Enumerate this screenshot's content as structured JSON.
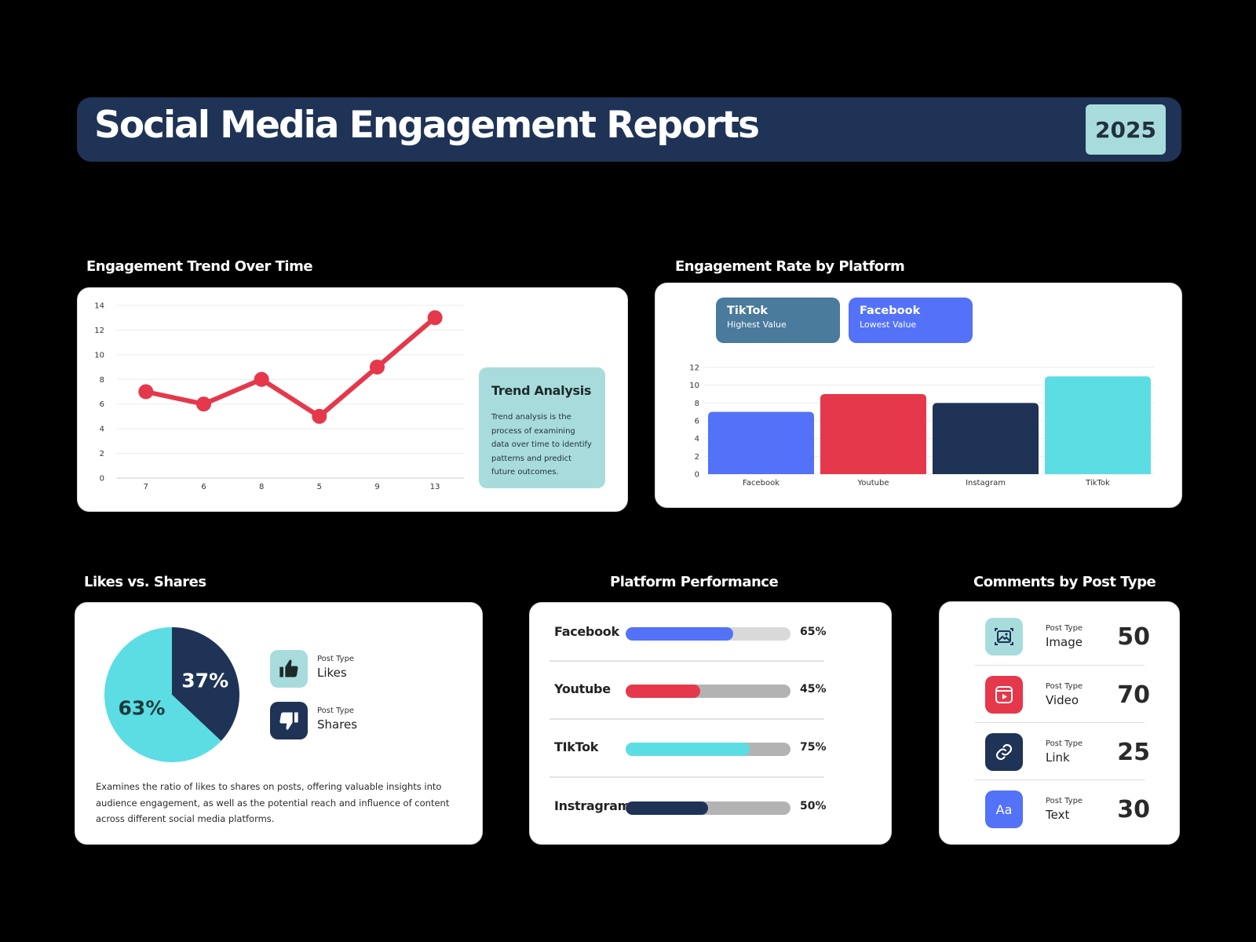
{
  "header": {
    "title": "Social Media Engagement Reports",
    "year": "2025"
  },
  "sections": {
    "trend": "Engagement Trend Over Time",
    "platform": "Engagement Rate by Platform",
    "likes": "Likes vs. Shares",
    "performance": "Platform Performance",
    "comments": "Comments by Post Type"
  },
  "trend_analysis": {
    "title": "Trend Analysis",
    "text": "Trend analysis is the process of examining data over time to identify patterns and predict future outcomes."
  },
  "platform_chips": [
    {
      "title": "TikTok",
      "subtitle": "Highest Value",
      "color": "#4a7a9c"
    },
    {
      "title": "Facebook",
      "subtitle": "Lowest Value",
      "color": "#5372f7"
    }
  ],
  "likes_legend": [
    {
      "small": "Post Type",
      "label": "Likes",
      "icon": "thumbs-up-icon",
      "color": "#a8dcdc"
    },
    {
      "small": "Post Type",
      "label": "Shares",
      "icon": "thumbs-down-icon",
      "color": "#1e3356"
    }
  ],
  "likes_description": "Examines the ratio of likes to shares on posts, offering valuable insights into audience engagement, as well as the potential reach and influence of content across different social media platforms.",
  "performance": [
    {
      "label": "Facebook",
      "value_text": "65%",
      "value": 0.65,
      "color": "#5372f7",
      "track": "#d9d9d9"
    },
    {
      "label": "Youtube",
      "value_text": "45%",
      "value": 0.45,
      "color": "#e5384a",
      "track": "#b3b3b3"
    },
    {
      "label": "TIkTok",
      "value_text": "75%",
      "value": 0.75,
      "color": "#5cdde4",
      "track": "#b3b3b3"
    },
    {
      "label": "Instragram",
      "value_text": "50%",
      "value": 0.5,
      "color": "#1e3356",
      "track": "#b3b3b3"
    }
  ],
  "comments": [
    {
      "small": "Post Type",
      "label": "Image",
      "value": "50",
      "icon": "image-icon",
      "color": "#a8dcdc"
    },
    {
      "small": "Post Type",
      "label": "Video",
      "value": "70",
      "icon": "video-icon",
      "color": "#e5384a"
    },
    {
      "small": "Post Type",
      "label": "Link",
      "value": "25",
      "icon": "link-icon",
      "color": "#1e3356"
    },
    {
      "small": "Post Type",
      "label": "Text",
      "value": "30",
      "icon": "text-icon",
      "icon_text": "Aa",
      "color": "#5372f7"
    }
  ],
  "chart_data": [
    {
      "type": "line",
      "categories": [
        "7",
        "6",
        "8",
        "5",
        "9",
        "13"
      ],
      "values": [
        7,
        6,
        8,
        5,
        9,
        13
      ],
      "ylim": [
        0,
        14
      ],
      "yticks": [
        0,
        2,
        4,
        6,
        8,
        10,
        12,
        14
      ],
      "grid": true,
      "color": "#e5384a"
    },
    {
      "type": "bar",
      "categories": [
        "Facebook",
        "Youtube",
        "Instagram",
        "TikTok"
      ],
      "values": [
        7,
        9,
        8,
        11
      ],
      "colors": [
        "#5372f7",
        "#e5384a",
        "#1e3356",
        "#5cdde4"
      ],
      "ylim": [
        0,
        12
      ],
      "yticks": [
        0,
        2,
        4,
        6,
        8,
        10,
        12
      ],
      "grid": true
    },
    {
      "type": "pie",
      "labels": [
        "63%",
        "37%"
      ],
      "values": [
        63,
        37
      ],
      "colors": [
        "#5cdde4",
        "#1e3356"
      ]
    }
  ]
}
